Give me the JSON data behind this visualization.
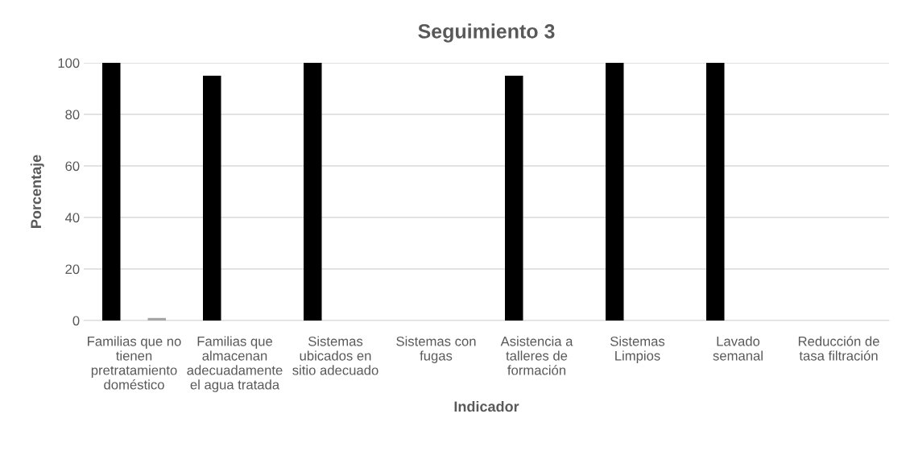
{
  "chart_data": {
    "type": "bar",
    "title": "Seguimiento 3",
    "xlabel": "Indicador",
    "ylabel": "Porcentaje",
    "categories": [
      "Familias que no tienen pretratamiento doméstico",
      "Familias que almacenan adecuadamente el agua tratada",
      "Sistemas ubicados en sitio adecuado",
      "Sistemas con fugas",
      "Asistencia a talleres de formación",
      "Sistemas Limpios",
      "Lavado semanal",
      "Reducción de tasa filtración"
    ],
    "series": [
      {
        "color": "#000000",
        "values": [
          100,
          95,
          100,
          0,
          95,
          100,
          100,
          0
        ]
      },
      {
        "color": "#a5a5a5",
        "values": [
          1,
          0,
          0,
          0,
          0,
          0,
          0,
          0
        ]
      }
    ],
    "ylim": [
      0,
      100
    ],
    "yticks": [
      0,
      20,
      40,
      60,
      80,
      100
    ],
    "grid": "y"
  }
}
